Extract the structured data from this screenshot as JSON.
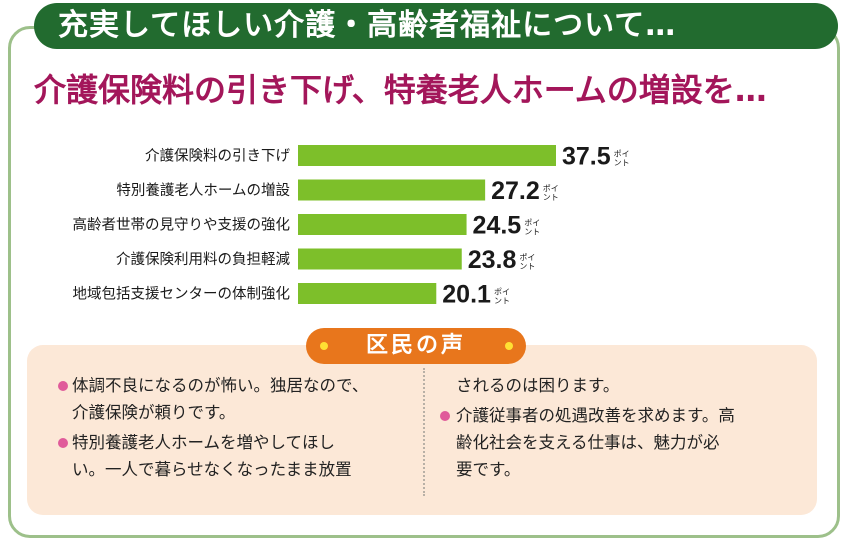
{
  "header": {
    "title": "充実してほしい介護・高齢者福祉について…",
    "subtitle": "介護保険料の引き下げ、特養老人ホームの増設を…"
  },
  "chart_data": {
    "type": "bar",
    "orientation": "horizontal",
    "categories": [
      "介護保険料の引き下げ",
      "特別養護老人ホームの増設",
      "高齢者世帯の見守りや支援の強化",
      "介護保険利用料の負担軽減",
      "地域包括支援センターの体制強化"
    ],
    "values": [
      37.5,
      27.2,
      24.5,
      23.8,
      20.1
    ],
    "value_labels": [
      "37.5",
      "27.2",
      "24.5",
      "23.8",
      "20.1"
    ],
    "unit": "ポイント",
    "bar_color": "#7dbf2a",
    "xlim": [
      0,
      40
    ]
  },
  "voices": {
    "heading": "区民の声",
    "left_lines": [
      "体調不良になるのが怖い。独居なので、",
      "介護保険が頼りです。",
      "特別養護老人ホームを増やしてほし",
      "い。一人で暮らせなくなったまま放置"
    ],
    "right_lines": [
      "されるのは困ります。",
      "介護従事者の処遇改善を求めます。高",
      "齢化社会を支える仕事は、魅力が必",
      "要です。"
    ]
  },
  "colors": {
    "header_bg": "#226b2f",
    "subtitle": "#a3165a",
    "frame": "#9dc08a",
    "voice_bg": "#fce8d7",
    "voice_pill": "#e8761c",
    "bullet": "#e05b9a"
  }
}
